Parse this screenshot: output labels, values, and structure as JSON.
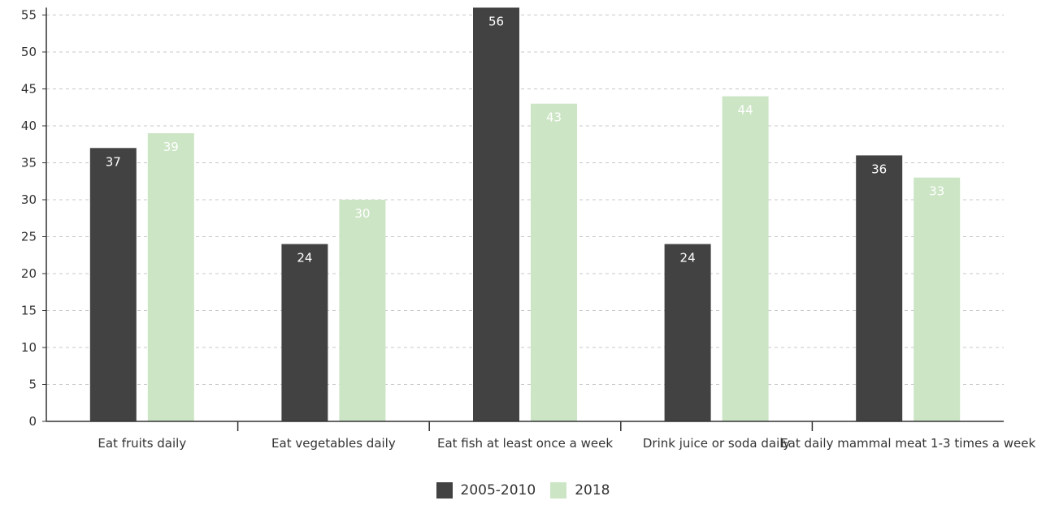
{
  "chart_data": {
    "type": "bar",
    "categories": [
      "Eat fruits daily",
      "Eat vegetables daily",
      "Eat fish at least once a week",
      "Drink juice or soda daily",
      "Eat daily mammal meat 1-3 times a week"
    ],
    "series": [
      {
        "name": "2005-2010",
        "color": "#424242",
        "label_color": "#ffffff",
        "values": [
          37,
          24,
          56,
          24,
          36
        ]
      },
      {
        "name": "2018",
        "color": "#cce5c5",
        "label_color": "#ffffff",
        "values": [
          39,
          30,
          43,
          44,
          33
        ]
      }
    ],
    "title": "",
    "xlabel": "",
    "ylabel": "",
    "ylim": [
      0,
      56
    ],
    "yticks": [
      0,
      5,
      10,
      15,
      20,
      25,
      30,
      35,
      40,
      45,
      50,
      55
    ],
    "grid": true,
    "legend_position": "bottom"
  }
}
